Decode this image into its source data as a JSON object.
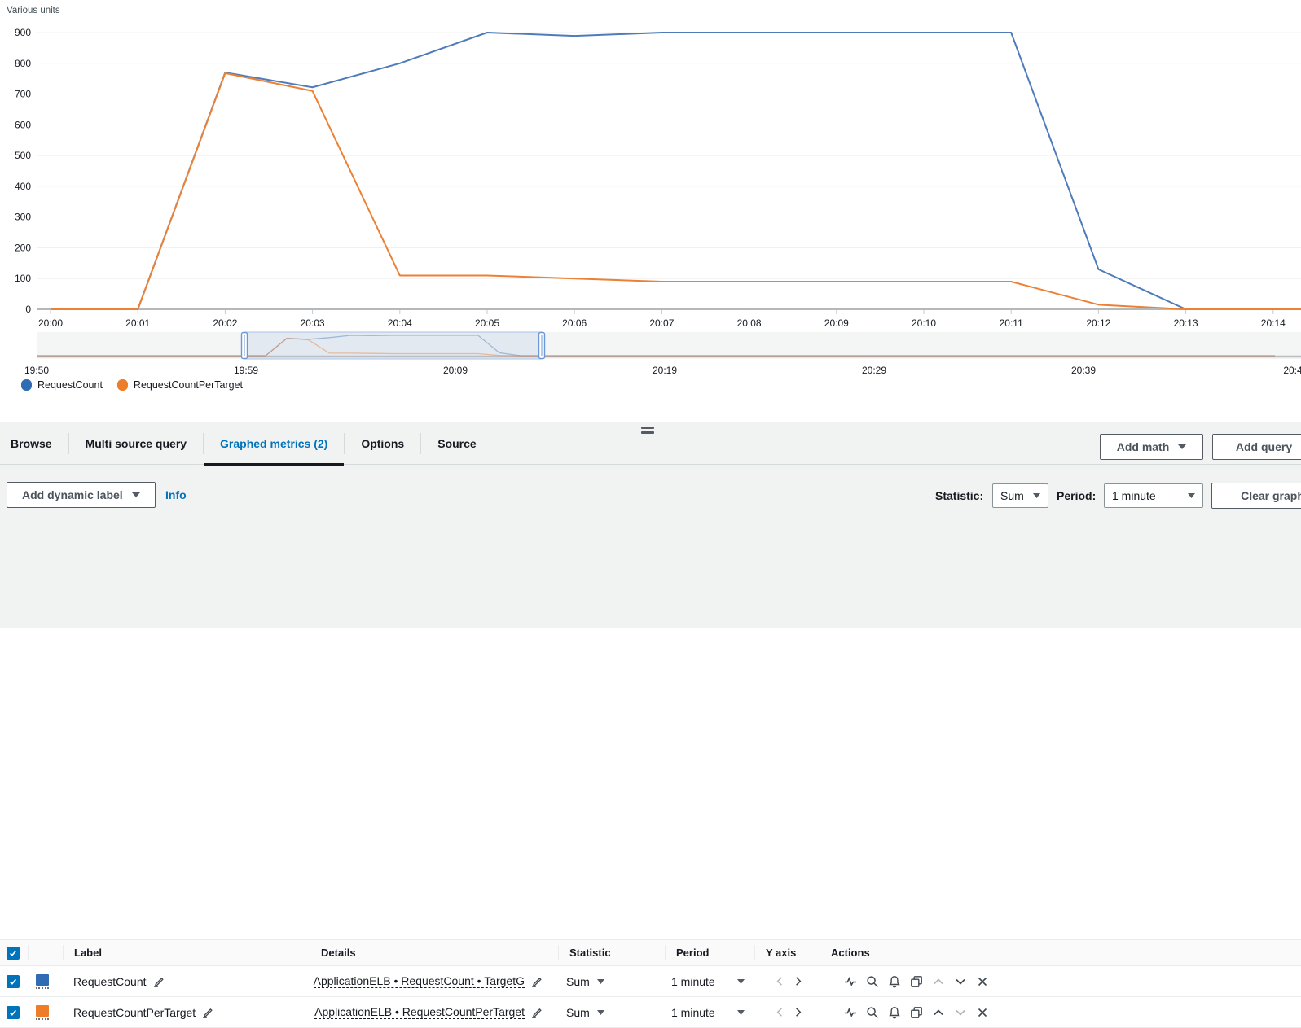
{
  "chart_data": {
    "type": "line",
    "title": "Various units",
    "xlabel": "",
    "ylabel": "Various units",
    "x": [
      "20:00",
      "20:01",
      "20:02",
      "20:03",
      "20:04",
      "20:05",
      "20:06",
      "20:07",
      "20:08",
      "20:09",
      "20:10",
      "20:11",
      "20:12",
      "20:13",
      "20:14"
    ],
    "ylim": [
      0,
      900
    ],
    "yticks": [
      0,
      100,
      200,
      300,
      400,
      500,
      600,
      700,
      800,
      900
    ],
    "grid": true,
    "legend_position": "bottom-left",
    "series": [
      {
        "name": "RequestCount",
        "color": "#4e7cba",
        "values": [
          0,
          0,
          770,
          722,
          800,
          900,
          889,
          900,
          900,
          900,
          900,
          900,
          130,
          0,
          0
        ]
      },
      {
        "name": "RequestCountPerTarget",
        "color": "#ec8034",
        "values": [
          0,
          0,
          768,
          710,
          110,
          110,
          100,
          90,
          90,
          90,
          90,
          90,
          15,
          0,
          0
        ]
      }
    ],
    "timeline": {
      "labels": [
        "19:50",
        "19:59",
        "20:09",
        "20:19",
        "20:29",
        "20:39",
        "20:4"
      ],
      "selection_range": [
        "20:00",
        "20:14"
      ]
    }
  },
  "legend": {
    "items": [
      {
        "label": "RequestCount",
        "color": "#2f6cb4"
      },
      {
        "label": "RequestCountPerTarget",
        "color": "#ed7d28"
      }
    ]
  },
  "tabs": {
    "items": [
      {
        "label": "Browse",
        "active": false
      },
      {
        "label": "Multi source query",
        "active": false
      },
      {
        "label": "Graphed metrics (2)",
        "active": true
      },
      {
        "label": "Options",
        "active": false
      },
      {
        "label": "Source",
        "active": false
      }
    ]
  },
  "top_actions": {
    "add_math": "Add math",
    "add_query": "Add query"
  },
  "toolbar": {
    "add_dynamic_label": "Add dynamic label",
    "info": "Info",
    "statistic_label": "Statistic:",
    "statistic_value": "Sum",
    "period_label": "Period:",
    "period_value": "1 minute",
    "clear_graph": "Clear graph"
  },
  "table": {
    "select_all_checked": true,
    "columns": [
      {
        "label": "Label"
      },
      {
        "label": "Details"
      },
      {
        "label": "Statistic"
      },
      {
        "label": "Period"
      },
      {
        "label": "Y axis"
      },
      {
        "label": "Actions"
      }
    ],
    "action_icons": [
      "metric-sparkline-icon",
      "zoom-to-metric-icon",
      "create-alarm-bell-icon",
      "duplicate-icon",
      "move-up-icon",
      "move-down-icon",
      "remove-metric-icon"
    ],
    "rows": [
      {
        "checked": true,
        "color": "#2f6cb4",
        "label": "RequestCount",
        "details": "ApplicationELB • RequestCount • TargetG",
        "statistic": "Sum",
        "period": "1 minute",
        "y_axis_left_enabled": false,
        "y_axis_right_enabled": true,
        "move_up_enabled": false,
        "move_down_enabled": true
      },
      {
        "checked": true,
        "color": "#ed7d28",
        "label": "RequestCountPerTarget",
        "details": "ApplicationELB • RequestCountPerTarget",
        "statistic": "Sum",
        "period": "1 minute",
        "y_axis_left_enabled": false,
        "y_axis_right_enabled": true,
        "move_up_enabled": true,
        "move_down_enabled": false
      }
    ]
  }
}
